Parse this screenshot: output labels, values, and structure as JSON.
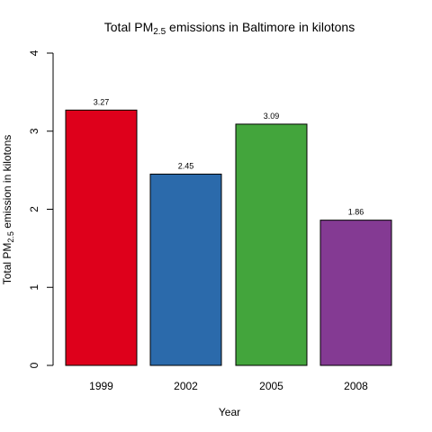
{
  "chart_data": {
    "type": "bar",
    "title": {
      "prefix": "Total PM",
      "subscript": "2.5",
      "suffix": " emissions in Baltimore in kilotons"
    },
    "xlabel": "Year",
    "ylabel": {
      "prefix": "Total PM",
      "subscript": "2.5",
      "suffix": " emission in kilotons"
    },
    "categories": [
      "1999",
      "2002",
      "2005",
      "2008"
    ],
    "values": [
      3.27,
      2.45,
      3.09,
      1.86
    ],
    "data_labels": [
      "3.27",
      "2.45",
      "3.09",
      "1.86"
    ],
    "colors": [
      "#de001b",
      "#2b6aab",
      "#43a53c",
      "#843a93"
    ],
    "ylim": [
      0,
      4
    ],
    "yticks": [
      0,
      1,
      2,
      3,
      4
    ],
    "grid": false,
    "legend": "none"
  }
}
